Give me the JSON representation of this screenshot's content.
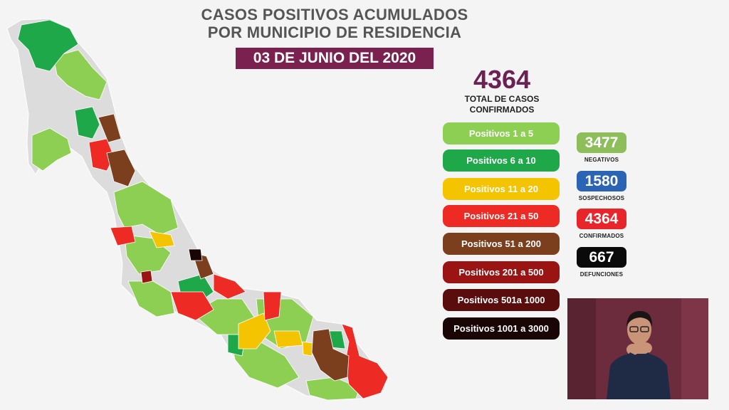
{
  "header": {
    "title_line1": "CASOS POSITIVOS ACUMULADOS",
    "title_line2": "POR MUNICIPIO DE RESIDENCIA",
    "date": "03 DE JUNIO DEL 2020"
  },
  "total": {
    "value": "4364",
    "caption_line1": "TOTAL DE CASOS",
    "caption_line2": "CONFIRMADOS"
  },
  "legend": [
    {
      "label": "Positivos 1 a 5",
      "color": "#8dcf52",
      "text_color": "#ffffff"
    },
    {
      "label": "Positivos 6 a 10",
      "color": "#1fa84a",
      "text_color": "#ffffff"
    },
    {
      "label": "Positivos 11 a 20",
      "color": "#f5c400",
      "text_color": "#ffffff"
    },
    {
      "label": "Positivos 21 a 50",
      "color": "#ee2a24",
      "text_color": "#ffffff"
    },
    {
      "label": "Positivos 51 a 200",
      "color": "#7b3f1e",
      "text_color": "#ffffff"
    },
    {
      "label": "Positivos 201 a 500",
      "color": "#9a1414",
      "text_color": "#ffffff"
    },
    {
      "label": "Positivos 501a 1000",
      "color": "#5a0d0d",
      "text_color": "#ffffff"
    },
    {
      "label": "Positivos 1001 a 3000",
      "color": "#1a0505",
      "text_color": "#ffffff"
    }
  ],
  "stats": [
    {
      "value": "3477",
      "label": "NEGATIVOS",
      "color": "#8dbe5a"
    },
    {
      "value": "1580",
      "label": "SOSPECHOSOS",
      "color": "#2b63b5"
    },
    {
      "value": "4364",
      "label": "CONFIRMADOS",
      "color": "#e8252a"
    },
    {
      "value": "667",
      "label": "DEFUNCIONES",
      "color": "#0a0a0a"
    }
  ],
  "map": {
    "colors": {
      "no_cases": "#dcdcdc",
      "pos_1_5": "#8dcf52",
      "pos_6_10": "#1fa84a",
      "pos_11_20": "#f5c400",
      "pos_21_50": "#ee2a24",
      "pos_51_200": "#7b3f1e",
      "pos_201_500": "#9a1414",
      "pos_501_1000": "#5a0d0d",
      "pos_1001_3000": "#1a0505"
    }
  }
}
